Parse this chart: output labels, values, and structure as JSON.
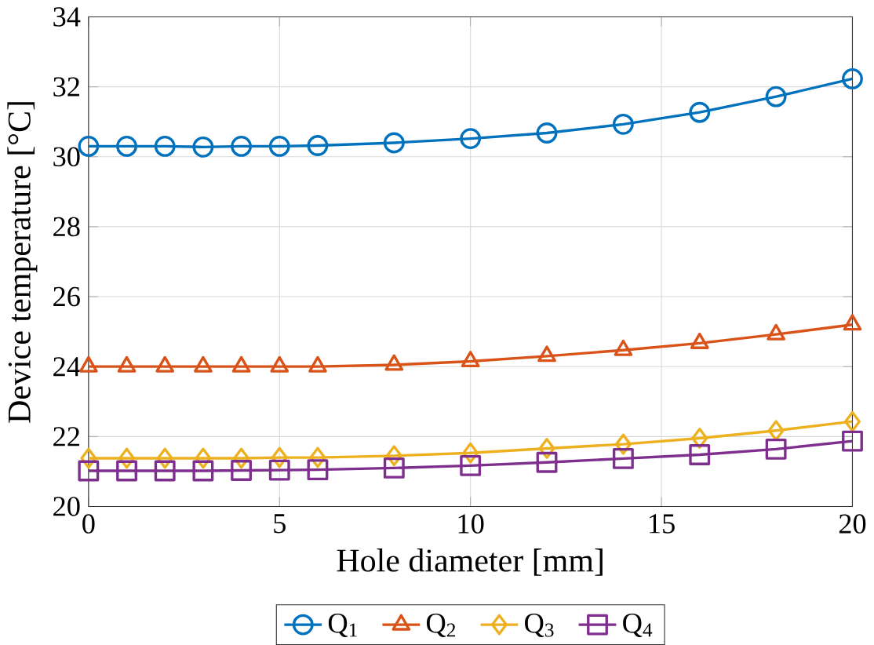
{
  "chart_data": {
    "type": "line",
    "xlabel": "Hole diameter [mm]",
    "ylabel": "Device temperature [°C]",
    "x": [
      0,
      1,
      2,
      3,
      4,
      5,
      6,
      8,
      10,
      12,
      14,
      16,
      18,
      20
    ],
    "xlim": [
      0,
      20
    ],
    "ylim": [
      20,
      34
    ],
    "xticks": [
      0,
      5,
      10,
      15,
      20
    ],
    "yticks": [
      20,
      22,
      24,
      26,
      28,
      30,
      32,
      34
    ],
    "grid": true,
    "legend": "bottom",
    "line_style": "solid",
    "series": [
      {
        "name": "Q$_{1}$",
        "color": "#0072bd",
        "marker": "circle",
        "values": [
          30.3,
          30.3,
          30.3,
          30.28,
          30.3,
          30.3,
          30.32,
          30.4,
          30.52,
          30.68,
          30.93,
          31.27,
          31.72,
          32.23
        ]
      },
      {
        "name": "Q$_{2}$",
        "color": "#d95319",
        "marker": "triangle",
        "values": [
          24.0,
          24.0,
          24.0,
          24.0,
          24.0,
          24.0,
          24.0,
          24.05,
          24.15,
          24.3,
          24.47,
          24.67,
          24.92,
          25.2
        ]
      },
      {
        "name": "Q$_{3}$",
        "color": "#edb120",
        "marker": "diamond",
        "values": [
          21.38,
          21.38,
          21.38,
          21.38,
          21.38,
          21.4,
          21.4,
          21.45,
          21.53,
          21.66,
          21.78,
          21.95,
          22.17,
          22.43
        ]
      },
      {
        "name": "Q$_{4}$",
        "color": "#7e2f8e",
        "marker": "square",
        "values": [
          21.02,
          21.02,
          21.02,
          21.02,
          21.03,
          21.04,
          21.05,
          21.1,
          21.17,
          21.26,
          21.37,
          21.48,
          21.64,
          21.87
        ]
      }
    ]
  }
}
